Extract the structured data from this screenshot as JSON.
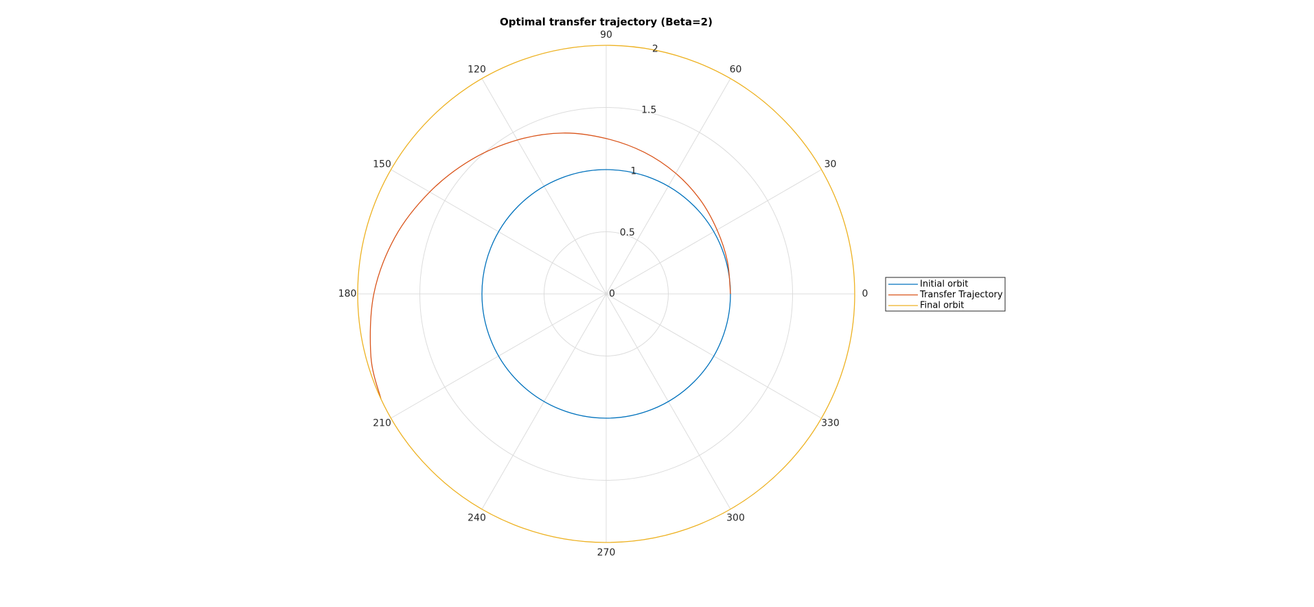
{
  "chart_data": {
    "type": "line",
    "polar": true,
    "title": "Optimal transfer trajectory (Beta=2)",
    "theta_ticks_deg": [
      0,
      30,
      60,
      90,
      120,
      150,
      180,
      210,
      240,
      270,
      300,
      330
    ],
    "theta_tick_labels": [
      "0",
      "30",
      "60",
      "90",
      "120",
      "150",
      "180",
      "210",
      "240",
      "270",
      "300",
      "330"
    ],
    "r_ticks": [
      0,
      0.5,
      1,
      1.5,
      2
    ],
    "r_tick_labels": [
      "0",
      "0.5",
      "1",
      "1.5",
      "2"
    ],
    "rlim": [
      0,
      2
    ],
    "grid": true,
    "legend_position": "right",
    "series": [
      {
        "name": "Initial orbit",
        "color": "#0072BD",
        "theta_deg": [
          0,
          360
        ],
        "r": [
          1,
          1
        ]
      },
      {
        "name": "Transfer Trajectory",
        "color": "#D95319",
        "theta_deg": [
          0,
          15,
          30,
          45,
          60,
          75,
          90,
          105,
          120,
          135,
          150,
          165,
          180,
          195,
          205
        ],
        "r": [
          1.0,
          1.01,
          1.03,
          1.07,
          1.12,
          1.18,
          1.25,
          1.34,
          1.43,
          1.53,
          1.64,
          1.76,
          1.87,
          1.96,
          2.0
        ]
      },
      {
        "name": "Final orbit",
        "color": "#EDB120",
        "theta_deg": [
          0,
          360
        ],
        "r": [
          2,
          2
        ]
      }
    ]
  }
}
